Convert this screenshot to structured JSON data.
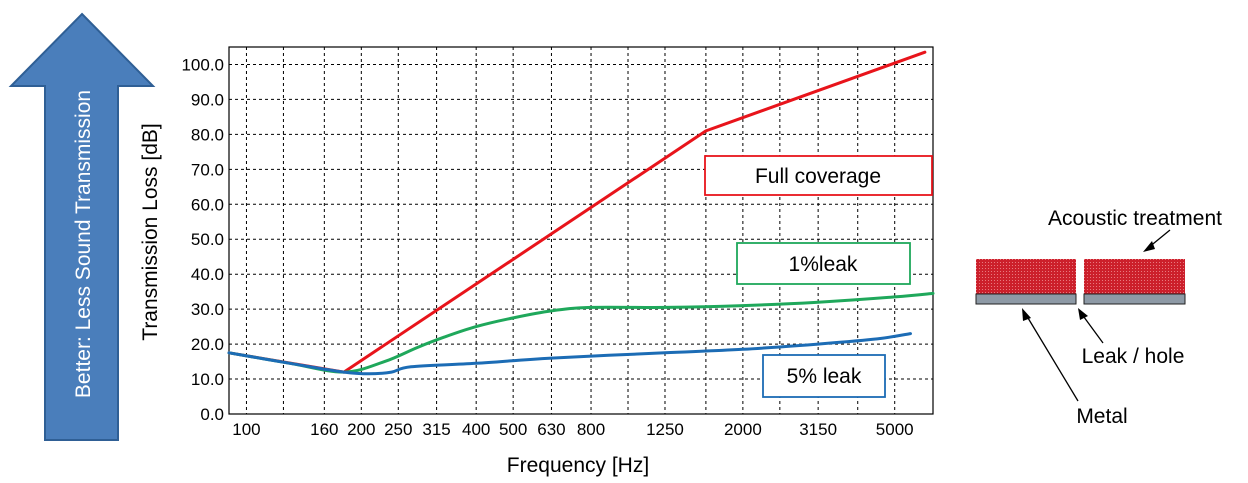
{
  "arrow": {
    "label": "Better: Less Sound Transmission",
    "fill": "#4a7ebb",
    "stroke": "#2f5f95"
  },
  "chart_data": {
    "type": "line",
    "title": "",
    "xlabel": "Frequency [Hz]",
    "ylabel": "Transmission Loss [dB]",
    "x_scale": "log",
    "xlim": [
      90,
      6300
    ],
    "ylim": [
      0,
      105
    ],
    "grid": true,
    "x_ticks": [
      {
        "value": 100,
        "label": "100"
      },
      {
        "value": 160,
        "label": "160"
      },
      {
        "value": 200,
        "label": "200"
      },
      {
        "value": 250,
        "label": "250"
      },
      {
        "value": 315,
        "label": "315"
      },
      {
        "value": 400,
        "label": "400"
      },
      {
        "value": 500,
        "label": "500"
      },
      {
        "value": 630,
        "label": "630"
      },
      {
        "value": 800,
        "label": "800"
      },
      {
        "value": 1250,
        "label": "1250"
      },
      {
        "value": 2000,
        "label": "2000"
      },
      {
        "value": 3150,
        "label": "3150"
      },
      {
        "value": 5000,
        "label": "5000"
      }
    ],
    "x_gridlines": [
      100,
      125,
      160,
      200,
      250,
      315,
      400,
      500,
      630,
      800,
      1000,
      1250,
      1600,
      2000,
      2500,
      3150,
      4000,
      5000
    ],
    "y_ticks": [
      {
        "value": 0,
        "label": "0.0"
      },
      {
        "value": 10,
        "label": "10.0"
      },
      {
        "value": 20,
        "label": "20.0"
      },
      {
        "value": 30,
        "label": "30.0"
      },
      {
        "value": 40,
        "label": "40.0"
      },
      {
        "value": 50,
        "label": "50.0"
      },
      {
        "value": 60,
        "label": "60.0"
      },
      {
        "value": 70,
        "label": "70.0"
      },
      {
        "value": 80,
        "label": "80.0"
      },
      {
        "value": 90,
        "label": "90.0"
      },
      {
        "value": 100,
        "label": "100.0"
      }
    ],
    "series": [
      {
        "name": "Full coverage",
        "color": "#e8141b",
        "points": [
          [
            90,
            17.5
          ],
          [
            180,
            12
          ],
          [
            1600,
            81
          ],
          [
            6000,
            103.5
          ]
        ]
      },
      {
        "name": "1%leak",
        "color": "#1fa85b",
        "points": [
          [
            90,
            17.5
          ],
          [
            130,
            14.5
          ],
          [
            180,
            12
          ],
          [
            230,
            15
          ],
          [
            280,
            19
          ],
          [
            330,
            22
          ],
          [
            400,
            25
          ],
          [
            500,
            27.5
          ],
          [
            630,
            29.5
          ],
          [
            800,
            30.5
          ],
          [
            1250,
            30.5
          ],
          [
            2000,
            31
          ],
          [
            3150,
            32
          ],
          [
            5000,
            33.5
          ],
          [
            6300,
            34.5
          ]
        ]
      },
      {
        "name": "5% leak",
        "color": "#1c6cb5",
        "points": [
          [
            90,
            17.5
          ],
          [
            130,
            14.5
          ],
          [
            180,
            12
          ],
          [
            210,
            11.5
          ],
          [
            240,
            12
          ],
          [
            270,
            13.5
          ],
          [
            400,
            14.5
          ],
          [
            630,
            16
          ],
          [
            1250,
            17.5
          ],
          [
            2000,
            18.5
          ],
          [
            3150,
            20
          ],
          [
            4500,
            21.5
          ],
          [
            5500,
            23
          ]
        ]
      }
    ],
    "annotations": [
      {
        "text": "Full coverage",
        "color": "#e8141b"
      },
      {
        "text": "1%leak",
        "color": "#1fa85b"
      },
      {
        "text": "5% leak",
        "color": "#1c6cb5"
      }
    ]
  },
  "diagram": {
    "treatment_label": "Acoustic treatment",
    "leak_label": "Leak / hole",
    "metal_label": "Metal",
    "treatment_color": "#cc1f2b",
    "metal_color": "#8e9aa6"
  }
}
